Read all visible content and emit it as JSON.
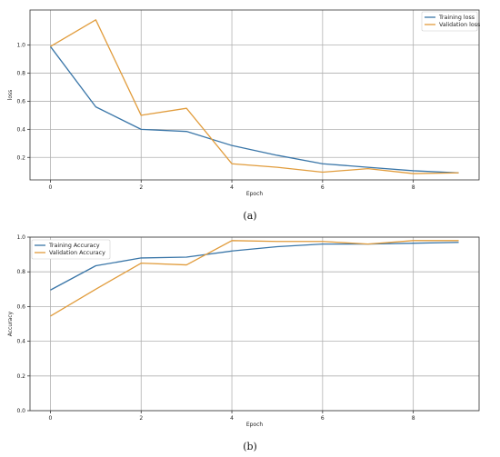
{
  "chart_data": [
    {
      "type": "line",
      "caption": "(a)",
      "xlabel": "Epoch",
      "ylabel": "loss",
      "xlim": [
        -0.45,
        9.45
      ],
      "ylim": [
        0.04,
        1.25
      ],
      "xticks": [
        0,
        2,
        4,
        6,
        8
      ],
      "yticks": [
        0.2,
        0.4,
        0.6,
        0.8,
        1.0
      ],
      "grid": true,
      "legend_position": "top-right",
      "x": [
        0,
        1,
        2,
        3,
        4,
        5,
        6,
        7,
        8,
        9
      ],
      "series": [
        {
          "name": "Training loss",
          "color": "#3a76a8",
          "values": [
            0.99,
            0.56,
            0.4,
            0.385,
            0.285,
            0.215,
            0.155,
            0.13,
            0.105,
            0.09
          ]
        },
        {
          "name": "Validation loss",
          "color": "#e19c3c",
          "values": [
            0.99,
            1.18,
            0.5,
            0.55,
            0.155,
            0.13,
            0.095,
            0.12,
            0.085,
            0.09
          ]
        }
      ]
    },
    {
      "type": "line",
      "caption": "(b)",
      "xlabel": "Epoch",
      "ylabel": "Accuracy",
      "xlim": [
        -0.45,
        9.45
      ],
      "ylim": [
        0.0,
        1.0
      ],
      "xticks": [
        0,
        2,
        4,
        6,
        8
      ],
      "yticks": [
        0.0,
        0.2,
        0.4,
        0.6,
        0.8,
        1.0
      ],
      "grid": true,
      "legend_position": "top-left",
      "x": [
        0,
        1,
        2,
        3,
        4,
        5,
        6,
        7,
        8,
        9
      ],
      "series": [
        {
          "name": "Training Accuracy",
          "color": "#3a76a8",
          "values": [
            0.695,
            0.835,
            0.88,
            0.885,
            0.92,
            0.945,
            0.96,
            0.96,
            0.965,
            0.97
          ]
        },
        {
          "name": "Validation Accuracy",
          "color": "#e19c3c",
          "values": [
            0.545,
            0.7,
            0.85,
            0.84,
            0.98,
            0.975,
            0.975,
            0.96,
            0.98,
            0.98
          ]
        }
      ]
    }
  ]
}
